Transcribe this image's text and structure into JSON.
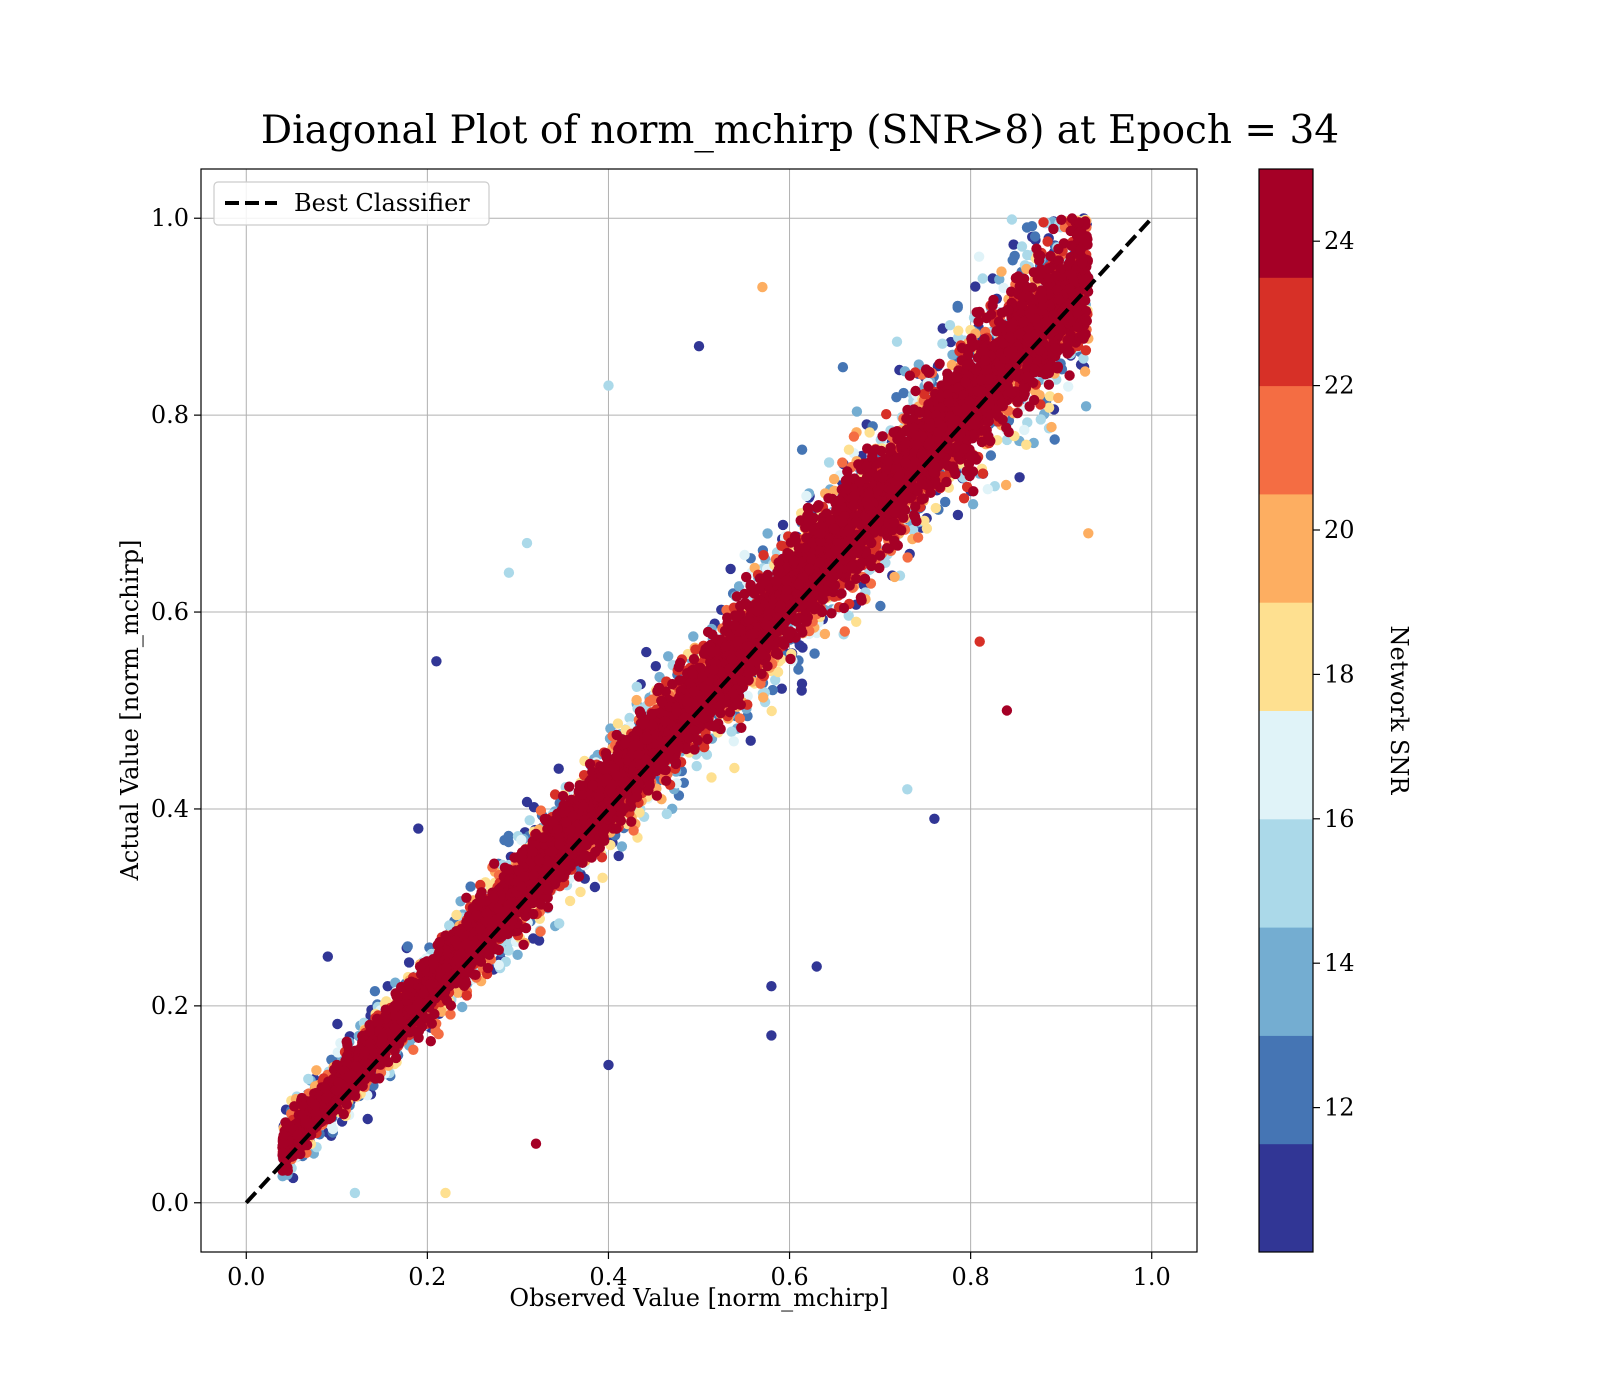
{
  "chart_data": {
    "type": "scatter",
    "title": "Diagonal Plot of norm_mchirp (SNR>8) at Epoch = 34",
    "xlabel": "Observed Value [norm_mchirp]",
    "ylabel": "Actual Value [norm_mchirp]",
    "xlim": [
      -0.05,
      1.05
    ],
    "ylim": [
      -0.05,
      1.05
    ],
    "xticks": [
      "0.0",
      "0.2",
      "0.4",
      "0.6",
      "0.8",
      "1.0"
    ],
    "yticks": [
      "0.0",
      "0.2",
      "0.4",
      "0.6",
      "0.8",
      "1.0"
    ],
    "grid": true,
    "legend": {
      "placement": "top-left",
      "entries": [
        {
          "label": "Best Classifier",
          "style": "dashed",
          "color": "#000000"
        }
      ]
    },
    "reference_line": {
      "name": "Best Classifier",
      "x": [
        0.0,
        1.0
      ],
      "y": [
        0.0,
        1.0
      ],
      "style": "dashed",
      "color": "#000000"
    },
    "colorbar": {
      "label": "Network SNR",
      "range": [
        10,
        25
      ],
      "ticks": [
        "12",
        "14",
        "16",
        "18",
        "20",
        "22",
        "24"
      ],
      "colors": [
        "#313695",
        "#4575b4",
        "#74add1",
        "#abd9e9",
        "#e0f3f8",
        "#fee090",
        "#fdae61",
        "#f46d43",
        "#d73027",
        "#a50026"
      ]
    },
    "point_cloud": {
      "relation": "y ≈ x",
      "x_range": [
        0.04,
        0.93
      ],
      "y_range": [
        0.0,
        1.0
      ],
      "color_by": "Network SNR"
    },
    "outliers": [
      {
        "x": 0.4,
        "y": 0.83,
        "snr": 14.5
      },
      {
        "x": 0.21,
        "y": 0.55,
        "snr": 10.5
      },
      {
        "x": 0.09,
        "y": 0.25,
        "snr": 10.5
      },
      {
        "x": 0.32,
        "y": 0.06,
        "snr": 24.0
      },
      {
        "x": 0.22,
        "y": 0.01,
        "snr": 17.5
      },
      {
        "x": 0.84,
        "y": 0.5,
        "snr": 24.0
      },
      {
        "x": 0.76,
        "y": 0.39,
        "snr": 10.5
      },
      {
        "x": 0.63,
        "y": 0.24,
        "snr": 10.5
      },
      {
        "x": 0.29,
        "y": 0.64,
        "snr": 14.5
      },
      {
        "x": 0.4,
        "y": 0.14,
        "snr": 10.5
      },
      {
        "x": 0.5,
        "y": 0.87,
        "snr": 10.5
      },
      {
        "x": 0.58,
        "y": 0.17,
        "snr": 10.5
      },
      {
        "x": 0.31,
        "y": 0.67,
        "snr": 15.5
      },
      {
        "x": 0.73,
        "y": 0.42,
        "snr": 14.5
      },
      {
        "x": 0.19,
        "y": 0.38,
        "snr": 10.5
      },
      {
        "x": 0.57,
        "y": 0.93,
        "snr": 20.0
      },
      {
        "x": 0.12,
        "y": 0.01,
        "snr": 14.5
      },
      {
        "x": 0.93,
        "y": 0.68,
        "snr": 20.0
      },
      {
        "x": 0.58,
        "y": 0.22,
        "snr": 10.5
      },
      {
        "x": 0.81,
        "y": 0.57,
        "snr": 22.0
      }
    ]
  }
}
